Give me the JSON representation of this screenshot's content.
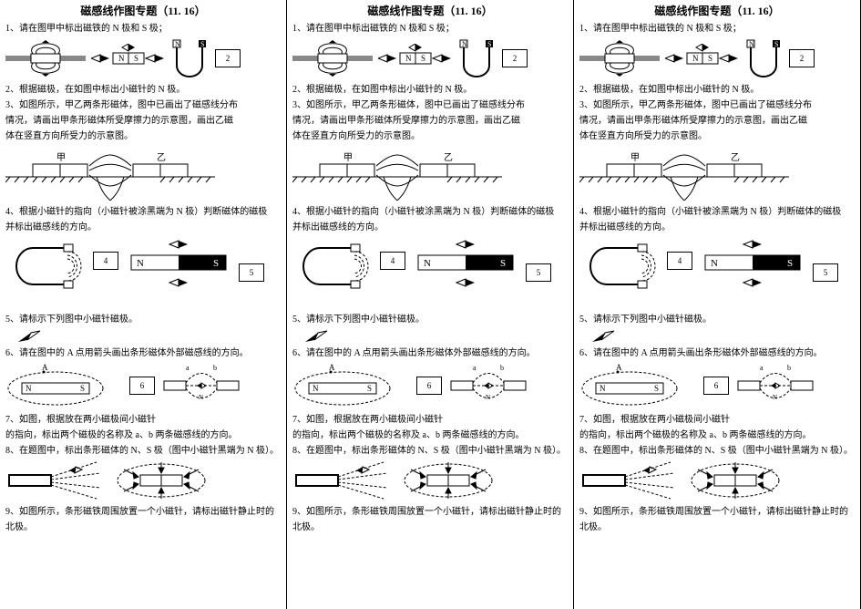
{
  "title": "磁感线作图专题（11. 16）",
  "q1": "1、请在图甲中标出磁铁的 N 极和 S 极；",
  "q2": "2、根据磁极，在如图中标出小磁针的 N 极。",
  "q3a": "3、如图所示，甲乙两条形磁体，图中已画出了磁感线分布",
  "q3b": "情况，请画出甲条形磁体所受摩擦力的示意图，画出乙磁",
  "q3c": "体在竖直方向所受力的示意图。",
  "q4a": "4、根据小磁针的指向（小磁针被涂黑端为 N 极）判断磁体的磁极",
  "q4b": "并标出磁感线的方向。",
  "q5": "5、请标示下列图中小磁针磁极。",
  "q6": "6、请在图中的 A 点用箭头画出条形磁体外部磁感线的方向。",
  "q7a": "7、如图，根据放在两小磁极间小磁针",
  "q7b": "的指向，标出两个磁极的名称及 a、b 两条磁感线的方向。",
  "q8": "8、在题图中，标出条形磁体的 N、S 极（图中小磁针黑端为 N 极）。",
  "q9a": "9、如图所示，条形磁铁周围放置一个小磁针，请标出磁针静止时的",
  "q9b": "北极。",
  "labels": {
    "N": "N",
    "S": "S",
    "jia": "甲",
    "yi": "乙",
    "b2": "2",
    "b4": "4",
    "b5": "5",
    "b6": "6"
  },
  "style": {
    "stroke": "#000000",
    "fill_dark": "#000000",
    "fill_gray": "#888888",
    "dash": "4,3",
    "thin": 1,
    "thick": 2
  }
}
